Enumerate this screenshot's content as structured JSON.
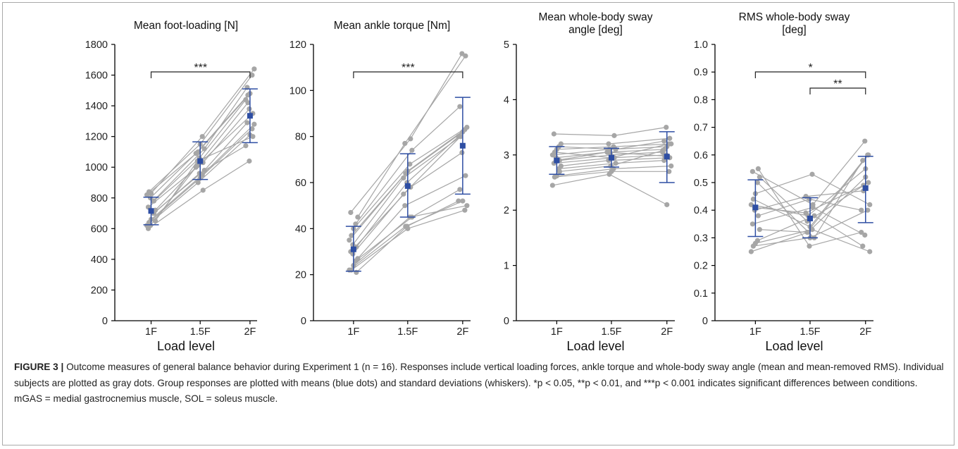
{
  "colors": {
    "subject": "#a6a6a6",
    "group": "#2e4ea3",
    "axis": "#000000"
  },
  "chart_data": [
    {
      "type": "scatter",
      "title": "Mean foot-loading [N]",
      "xlabel": "Load level",
      "ylabel": "",
      "categories": [
        "1F",
        "1.5F",
        "2F"
      ],
      "ylim": [
        0,
        1800
      ],
      "yticks": [
        0,
        200,
        400,
        600,
        800,
        1000,
        1200,
        1400,
        1600,
        1800
      ],
      "ytick_labels": [
        "0",
        "200",
        "400",
        "600",
        "800",
        "1000",
        "1200",
        "1400",
        "1600",
        "1800"
      ],
      "subjects": [
        [
          620,
          900,
          1210
        ],
        [
          640,
          930,
          1250
        ],
        [
          660,
          950,
          1280
        ],
        [
          700,
          980,
          1290
        ],
        [
          720,
          1010,
          1350
        ],
        [
          740,
          1030,
          1380
        ],
        [
          780,
          1060,
          1440
        ],
        [
          800,
          1090,
          1470
        ],
        [
          820,
          1100,
          1480
        ],
        [
          840,
          1150,
          1600
        ],
        [
          830,
          1200,
          1640
        ],
        [
          780,
          1120,
          1520
        ],
        [
          650,
          1040,
          1200
        ],
        [
          600,
          850,
          1040
        ],
        [
          700,
          960,
          1140
        ],
        [
          620,
          1000,
          1420
        ]
      ],
      "means": [
        715,
        1040,
        1335
      ],
      "sd_low": [
        625,
        920,
        1160
      ],
      "sd_high": [
        805,
        1165,
        1510
      ],
      "significance": [
        {
          "from": 0,
          "to": 2,
          "label": "***"
        }
      ]
    },
    {
      "type": "scatter",
      "title": "Mean ankle torque [Nm]",
      "xlabel": "",
      "ylabel": "",
      "categories": [
        "1F",
        "1.5F",
        "2F"
      ],
      "ylim": [
        0,
        120
      ],
      "yticks": [
        0,
        20,
        40,
        60,
        80,
        100,
        120
      ],
      "ytick_labels": [
        "0",
        "20",
        "40",
        "60",
        "80",
        "100",
        "120"
      ],
      "subjects": [
        [
          22,
          41,
          52
        ],
        [
          22,
          40,
          48
        ],
        [
          24,
          45,
          50
        ],
        [
          26,
          45,
          57
        ],
        [
          27,
          50,
          63
        ],
        [
          30,
          58,
          73
        ],
        [
          32,
          60,
          80
        ],
        [
          33,
          62,
          80
        ],
        [
          35,
          64,
          82
        ],
        [
          37,
          65,
          83
        ],
        [
          40,
          68,
          84
        ],
        [
          42,
          74,
          93
        ],
        [
          45,
          77,
          115
        ],
        [
          47,
          79,
          116
        ],
        [
          21,
          41,
          52
        ],
        [
          29,
          55,
          80
        ]
      ],
      "means": [
        31,
        58.5,
        76
      ],
      "sd_low": [
        21.5,
        45,
        55
      ],
      "sd_high": [
        41,
        72.5,
        97
      ],
      "significance": [
        {
          "from": 0,
          "to": 2,
          "label": "***"
        }
      ]
    },
    {
      "type": "scatter",
      "title": "Mean whole-body sway angle [deg]",
      "title_lines": [
        "Mean whole-body sway",
        "angle [deg]"
      ],
      "xlabel": "Load level",
      "ylabel": "",
      "categories": [
        "1F",
        "1.5F",
        "2F"
      ],
      "ylim": [
        0,
        5
      ],
      "yticks": [
        0,
        1,
        2,
        3,
        4,
        5
      ],
      "ytick_labels": [
        "0",
        "1",
        "2",
        "3",
        "4",
        "5"
      ],
      "subjects": [
        [
          2.45,
          2.65,
          2.1
        ],
        [
          2.6,
          2.7,
          2.7
        ],
        [
          2.62,
          2.75,
          2.8
        ],
        [
          2.75,
          2.85,
          2.9
        ],
        [
          2.8,
          2.9,
          2.95
        ],
        [
          2.85,
          2.95,
          3.0
        ],
        [
          2.9,
          3.0,
          3.05
        ],
        [
          2.95,
          3.05,
          3.1
        ],
        [
          3.0,
          3.1,
          3.15
        ],
        [
          3.05,
          2.95,
          3.2
        ],
        [
          3.1,
          3.15,
          3.2
        ],
        [
          3.15,
          3.1,
          3.25
        ],
        [
          3.2,
          3.2,
          3.3
        ],
        [
          3.38,
          3.35,
          3.5
        ],
        [
          2.7,
          2.8,
          3.08
        ],
        [
          2.9,
          3.05,
          2.98
        ]
      ],
      "means": [
        2.9,
        2.95,
        2.97
      ],
      "sd_low": [
        2.65,
        2.78,
        2.5
      ],
      "sd_high": [
        3.15,
        3.12,
        3.42
      ],
      "significance": []
    },
    {
      "type": "scatter",
      "title": "RMS whole-body sway [deg]",
      "title_lines": [
        "RMS whole-body sway",
        "[deg]"
      ],
      "xlabel": "Load level",
      "ylabel": "",
      "categories": [
        "1F",
        "1.5F",
        "2F"
      ],
      "ylim": [
        0,
        1.0
      ],
      "yticks": [
        0,
        0.1,
        0.2,
        0.3,
        0.4,
        0.5,
        0.6,
        0.7,
        0.8,
        0.9,
        1.0
      ],
      "ytick_labels": [
        "0",
        "0.1",
        "0.2",
        "0.3",
        "0.4",
        "0.5",
        "0.6",
        "0.7",
        "0.8",
        "0.9",
        "1.0"
      ],
      "subjects": [
        [
          0.25,
          0.32,
          0.52
        ],
        [
          0.27,
          0.3,
          0.4
        ],
        [
          0.28,
          0.33,
          0.25
        ],
        [
          0.29,
          0.38,
          0.27
        ],
        [
          0.33,
          0.32,
          0.6
        ],
        [
          0.35,
          0.41,
          0.31
        ],
        [
          0.38,
          0.44,
          0.4
        ],
        [
          0.4,
          0.45,
          0.47
        ],
        [
          0.42,
          0.38,
          0.55
        ],
        [
          0.44,
          0.34,
          0.6
        ],
        [
          0.46,
          0.53,
          0.42
        ],
        [
          0.5,
          0.3,
          0.58
        ],
        [
          0.52,
          0.36,
          0.5
        ],
        [
          0.54,
          0.42,
          0.65
        ],
        [
          0.55,
          0.27,
          0.32
        ],
        [
          0.41,
          0.39,
          0.49
        ]
      ],
      "means": [
        0.41,
        0.37,
        0.48
      ],
      "sd_low": [
        0.305,
        0.3,
        0.355
      ],
      "sd_high": [
        0.51,
        0.445,
        0.595
      ],
      "significance": [
        {
          "from": 0,
          "to": 2,
          "label": "*"
        },
        {
          "from": 1,
          "to": 2,
          "label": "**"
        }
      ]
    }
  ],
  "caption": {
    "label": "FIGURE 3 |",
    "text": "Outcome measures of general balance behavior during Experiment 1 (n = 16). Responses include vertical loading forces, ankle torque and whole-body sway angle (mean and mean-removed RMS). Individual subjects are plotted as gray dots. Group responses are plotted with means (blue dots) and standard deviations (whiskers). *p < 0.05, **p < 0.01, and ***p < 0.001 indicates significant differences between conditions. mGAS = medial gastrocnemius muscle, SOL = soleus muscle."
  }
}
